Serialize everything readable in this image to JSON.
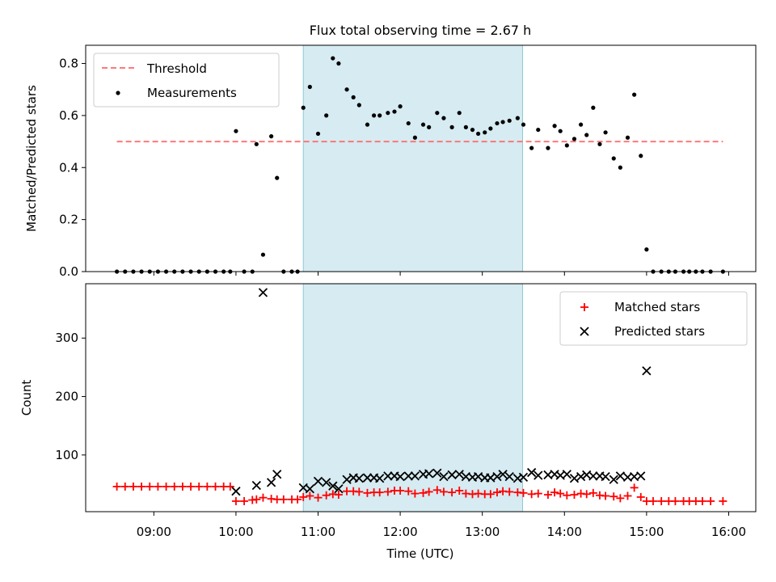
{
  "chart_data": {
    "title": "Flux total observing time = 2.67 h",
    "xlabel": "Time (UTC)",
    "x_ticks": [
      "09:00",
      "10:00",
      "11:00",
      "12:00",
      "13:00",
      "14:00",
      "15:00",
      "16:00"
    ],
    "xlim_hours": [
      8.17,
      16.33
    ],
    "highlight_span_hours": [
      10.82,
      13.49
    ],
    "highlight_color": "#add8e6",
    "panels": [
      {
        "type": "scatter",
        "ylabel": "Matched/Predicted stars",
        "ylim": [
          0,
          0.87
        ],
        "y_ticks": [
          "0.0",
          "0.2",
          "0.4",
          "0.6",
          "0.8"
        ],
        "legend_position": "top-left",
        "threshold": {
          "name": "Threshold",
          "value": 0.5,
          "x_range_hours": [
            8.55,
            15.93
          ],
          "color": "#ff6b6b"
        },
        "series": [
          {
            "name": "Measurements",
            "color": "#000000",
            "x": [
              8.55,
              8.65,
              8.75,
              8.85,
              8.95,
              9.05,
              9.15,
              9.25,
              9.35,
              9.45,
              9.55,
              9.65,
              9.75,
              9.85,
              9.93,
              10.0,
              10.1,
              10.2,
              10.25,
              10.33,
              10.43,
              10.5,
              10.58,
              10.68,
              10.75,
              10.82,
              10.9,
              11.0,
              11.1,
              11.18,
              11.25,
              11.35,
              11.43,
              11.5,
              11.6,
              11.68,
              11.75,
              11.85,
              11.93,
              12.0,
              12.1,
              12.18,
              12.28,
              12.35,
              12.45,
              12.53,
              12.63,
              12.72,
              12.8,
              12.88,
              12.95,
              13.03,
              13.1,
              13.18,
              13.25,
              13.33,
              13.43,
              13.5,
              13.6,
              13.68,
              13.8,
              13.88,
              13.95,
              14.03,
              14.12,
              14.2,
              14.27,
              14.35,
              14.43,
              14.5,
              14.6,
              14.68,
              14.77,
              14.85,
              14.93,
              15.0,
              15.08,
              15.18,
              15.27,
              15.35,
              15.45,
              15.52,
              15.6,
              15.68,
              15.78,
              15.93
            ],
            "y": [
              0,
              0,
              0,
              0,
              0,
              0,
              0,
              0,
              0,
              0,
              0,
              0,
              0,
              0,
              0,
              0.54,
              0,
              0,
              0.49,
              0.065,
              0.52,
              0.36,
              0,
              0,
              0,
              0.63,
              0.71,
              0.53,
              0.6,
              0.82,
              0.8,
              0.7,
              0.67,
              0.64,
              0.565,
              0.6,
              0.6,
              0.61,
              0.615,
              0.635,
              0.57,
              0.515,
              0.565,
              0.555,
              0.61,
              0.59,
              0.555,
              0.61,
              0.555,
              0.545,
              0.53,
              0.535,
              0.55,
              0.57,
              0.575,
              0.58,
              0.59,
              0.565,
              0.475,
              0.545,
              0.475,
              0.56,
              0.54,
              0.485,
              0.51,
              0.565,
              0.525,
              0.63,
              0.49,
              0.535,
              0.435,
              0.4,
              0.515,
              0.68,
              0.445,
              0.085,
              0,
              0,
              0,
              0,
              0,
              0,
              0,
              0,
              0,
              0
            ]
          }
        ]
      },
      {
        "type": "scatter",
        "ylabel": "Count",
        "ylim": [
          3,
          393
        ],
        "y_ticks": [
          "100",
          "200",
          "300"
        ],
        "legend_position": "top-right",
        "series": [
          {
            "name": "Matched stars",
            "marker": "plus",
            "color": "#ff0000",
            "x": [
              8.55,
              8.65,
              8.75,
              8.85,
              8.95,
              9.05,
              9.15,
              9.25,
              9.35,
              9.45,
              9.55,
              9.65,
              9.75,
              9.85,
              9.93,
              10.0,
              10.1,
              10.2,
              10.25,
              10.33,
              10.43,
              10.5,
              10.58,
              10.68,
              10.75,
              10.82,
              10.9,
              11.0,
              11.1,
              11.18,
              11.25,
              11.35,
              11.43,
              11.5,
              11.6,
              11.68,
              11.75,
              11.85,
              11.93,
              12.0,
              12.1,
              12.18,
              12.28,
              12.35,
              12.45,
              12.53,
              12.63,
              12.72,
              12.8,
              12.88,
              12.95,
              13.03,
              13.1,
              13.18,
              13.25,
              13.33,
              13.43,
              13.5,
              13.6,
              13.68,
              13.8,
              13.88,
              13.95,
              14.03,
              14.12,
              14.2,
              14.27,
              14.35,
              14.43,
              14.5,
              14.6,
              14.68,
              14.77,
              14.85,
              14.93,
              15.0,
              15.08,
              15.18,
              15.27,
              15.35,
              15.45,
              15.52,
              15.6,
              15.68,
              15.78,
              15.93
            ],
            "y": [
              46,
              46,
              46,
              46,
              46,
              46,
              46,
              46,
              46,
              46,
              46,
              46,
              46,
              46,
              46,
              21,
              21,
              23,
              24,
              27,
              25,
              24,
              24,
              24,
              24,
              28,
              30,
              27,
              31,
              33,
              32,
              38,
              38,
              37,
              35,
              36,
              36,
              37,
              39,
              39,
              38,
              34,
              35,
              37,
              40,
              37,
              36,
              39,
              34,
              33,
              34,
              33,
              33,
              36,
              38,
              37,
              36,
              35,
              33,
              34,
              32,
              36,
              34,
              31,
              32,
              34,
              33,
              35,
              31,
              30,
              29,
              26,
              30,
              44,
              28,
              21,
              21,
              21,
              21,
              21,
              21,
              21,
              21,
              21,
              21,
              21
            ]
          },
          {
            "name": "Predicted stars",
            "marker": "x",
            "color": "#000000",
            "x": [
              10.0,
              10.25,
              10.33,
              10.43,
              10.5,
              10.82,
              10.9,
              11.0,
              11.1,
              11.18,
              11.25,
              11.35,
              11.43,
              11.5,
              11.6,
              11.68,
              11.75,
              11.85,
              11.93,
              12.0,
              12.1,
              12.18,
              12.28,
              12.35,
              12.45,
              12.53,
              12.63,
              12.72,
              12.8,
              12.88,
              12.95,
              13.03,
              13.1,
              13.18,
              13.25,
              13.33,
              13.43,
              13.5,
              13.6,
              13.68,
              13.8,
              13.88,
              13.95,
              14.03,
              14.12,
              14.2,
              14.27,
              14.35,
              14.43,
              14.5,
              14.6,
              14.68,
              14.77,
              14.85,
              14.93,
              15.0
            ],
            "y": [
              38,
              48,
              378,
              53,
              67,
              44,
              42,
              55,
              53,
              47,
              42,
              58,
              61,
              60,
              61,
              61,
              60,
              64,
              64,
              63,
              64,
              64,
              67,
              68,
              69,
              63,
              66,
              67,
              63,
              62,
              63,
              61,
              61,
              63,
              67,
              63,
              60,
              62,
              70,
              65,
              66,
              67,
              65,
              67,
              60,
              63,
              66,
              64,
              64,
              63,
              58,
              64,
              62,
              63,
              64,
              244
            ]
          }
        ]
      }
    ]
  }
}
